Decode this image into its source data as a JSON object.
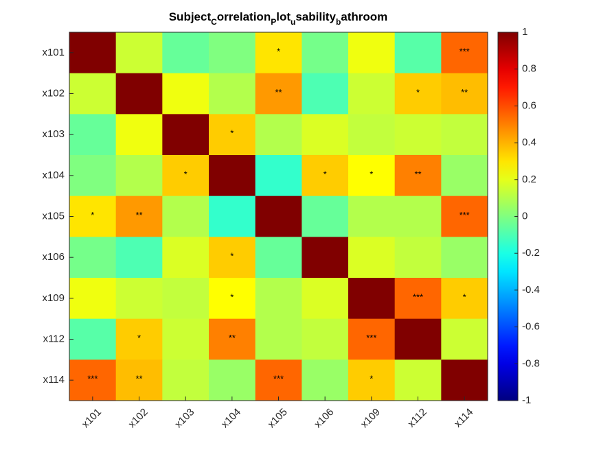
{
  "chart_data": {
    "type": "heatmap",
    "title_parts": [
      {
        "text": "Subject",
        "role": "main"
      },
      {
        "text": "C",
        "role": "sub"
      },
      {
        "text": "orrelation",
        "role": "main"
      },
      {
        "text": "P",
        "role": "sub"
      },
      {
        "text": "lot",
        "role": "main"
      },
      {
        "text": "u",
        "role": "sub"
      },
      {
        "text": "sability",
        "role": "main"
      },
      {
        "text": "b",
        "role": "sub"
      },
      {
        "text": "athroom",
        "role": "main"
      }
    ],
    "x_labels": [
      "x101",
      "x102",
      "x103",
      "x104",
      "x105",
      "x106",
      "x109",
      "x112",
      "x114"
    ],
    "y_labels": [
      "x101",
      "x102",
      "x103",
      "x104",
      "x105",
      "x106",
      "x109",
      "x112",
      "x114"
    ],
    "values": [
      [
        1.0,
        0.15,
        -0.05,
        0.0,
        0.3,
        -0.02,
        0.22,
        -0.08,
        0.55
      ],
      [
        0.15,
        1.0,
        0.22,
        0.1,
        0.45,
        -0.1,
        0.15,
        0.35,
        0.38
      ],
      [
        -0.05,
        0.22,
        1.0,
        0.35,
        0.1,
        0.18,
        0.13,
        0.15,
        0.13
      ],
      [
        0.0,
        0.1,
        0.35,
        1.0,
        -0.15,
        0.35,
        0.25,
        0.5,
        0.05
      ],
      [
        0.3,
        0.45,
        0.1,
        -0.15,
        1.0,
        -0.05,
        0.1,
        0.1,
        0.55
      ],
      [
        -0.02,
        -0.1,
        0.18,
        0.35,
        -0.05,
        1.0,
        0.18,
        0.13,
        0.05
      ],
      [
        0.22,
        0.15,
        0.13,
        0.25,
        0.1,
        0.18,
        1.0,
        0.55,
        0.35
      ],
      [
        -0.08,
        0.35,
        0.15,
        0.5,
        0.1,
        0.13,
        0.55,
        1.0,
        0.15
      ],
      [
        0.55,
        0.38,
        0.13,
        0.05,
        0.55,
        0.05,
        0.35,
        0.15,
        1.0
      ]
    ],
    "significance": [
      [
        "",
        "",
        "",
        "",
        "*",
        "",
        "",
        "",
        "***"
      ],
      [
        "",
        "",
        "",
        "",
        "**",
        "",
        "",
        "*",
        "**"
      ],
      [
        "",
        "",
        "",
        "*",
        "",
        "",
        "",
        "",
        ""
      ],
      [
        "",
        "",
        "*",
        "",
        "",
        "*",
        "*",
        "**",
        ""
      ],
      [
        "*",
        "**",
        "",
        "",
        "",
        "",
        "",
        "",
        "***"
      ],
      [
        "",
        "",
        "",
        "*",
        "",
        "",
        "",
        "",
        ""
      ],
      [
        "",
        "",
        "",
        "*",
        "",
        "",
        "",
        "***",
        "*"
      ],
      [
        "",
        "*",
        "",
        "**",
        "",
        "",
        "***",
        "",
        ""
      ],
      [
        "***",
        "**",
        "",
        "",
        "***",
        "",
        "*",
        "",
        ""
      ]
    ],
    "colormap": "jet",
    "clim": [
      -1,
      1
    ],
    "colorbar": {
      "position": "right",
      "ticks": [
        "1",
        "0.8",
        "0.6",
        "0.4",
        "0.2",
        "0",
        "-0.2",
        "-0.4",
        "-0.6",
        "-0.8",
        "-1"
      ]
    },
    "grid": false
  }
}
